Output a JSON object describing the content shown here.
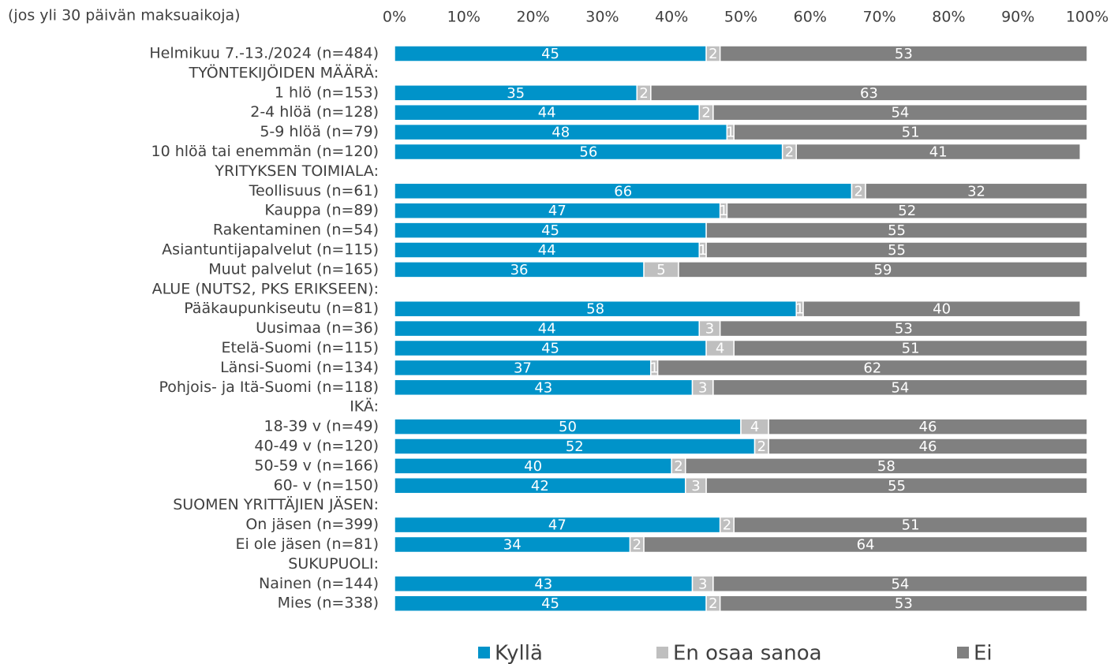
{
  "chart_data": {
    "type": "stacked-bar-horizontal",
    "subtitle": "(jos yli 30 päivän maksuaikoja)",
    "categories": [
      "Helmikuu 7.-13./2024 (n=484)",
      "TYÖNTEKIJÖIDEN MÄÄRÄ:",
      "1 hlö (n=153)",
      "2-4 hlöä (n=128)",
      "5-9 hlöä (n=79)",
      "10 hlöä tai enemmän (n=120)",
      "YRITYKSEN TOIMIALA:",
      "Teollisuus (n=61)",
      "Kauppa (n=89)",
      "Rakentaminen (n=54)",
      "Asiantuntijapalvelut (n=115)",
      "Muut palvelut (n=165)",
      "ALUE (NUTS2, PKS ERIKSEEN):",
      "Pääkaupunkiseutu (n=81)",
      "Uusimaa (n=36)",
      "Etelä-Suomi (n=115)",
      "Länsi-Suomi (n=134)",
      "Pohjois- ja Itä-Suomi (n=118)",
      "IKÄ:",
      "18-39 v (n=49)",
      "40-49 v (n=120)",
      "50-59 v (n=166)",
      "60- v (n=150)",
      "SUOMEN YRITTÄJIEN JÄSEN:",
      "On jäsen (n=399)",
      "Ei ole jäsen (n=81)",
      "SUKUPUOLI:",
      "Nainen (n=144)",
      "Mies (n=338)"
    ],
    "series": [
      {
        "name": "Kyllä",
        "color": "#0093c9",
        "values": [
          45,
          null,
          35,
          44,
          48,
          56,
          null,
          66,
          47,
          45,
          44,
          36,
          null,
          58,
          44,
          45,
          37,
          43,
          null,
          50,
          52,
          40,
          42,
          null,
          47,
          34,
          null,
          43,
          45
        ]
      },
      {
        "name": "En osaa sanoa",
        "color": "#bfbfbf",
        "values": [
          2,
          null,
          2,
          2,
          1,
          2,
          null,
          2,
          1,
          null,
          1,
          5,
          null,
          1,
          3,
          4,
          1,
          3,
          null,
          4,
          2,
          2,
          3,
          null,
          2,
          2,
          null,
          3,
          2
        ]
      },
      {
        "name": "Ei",
        "color": "#808080",
        "values": [
          53,
          null,
          63,
          54,
          51,
          41,
          null,
          32,
          52,
          55,
          55,
          59,
          null,
          40,
          53,
          51,
          62,
          54,
          null,
          46,
          46,
          58,
          55,
          null,
          51,
          64,
          null,
          54,
          53
        ]
      }
    ],
    "xlim": [
      0,
      100
    ],
    "xticks": [
      {
        "value": 0,
        "label": "0%"
      },
      {
        "value": 10,
        "label": "10%"
      },
      {
        "value": 20,
        "label": "20%"
      },
      {
        "value": 30,
        "label": "30%"
      },
      {
        "value": 40,
        "label": "40%"
      },
      {
        "value": 50,
        "label": "50%"
      },
      {
        "value": 60,
        "label": "60%"
      },
      {
        "value": 70,
        "label": "70%"
      },
      {
        "value": 80,
        "label": "80%"
      },
      {
        "value": 90,
        "label": "90%"
      },
      {
        "value": 100,
        "label": "100%"
      }
    ],
    "legend": "bottom"
  }
}
